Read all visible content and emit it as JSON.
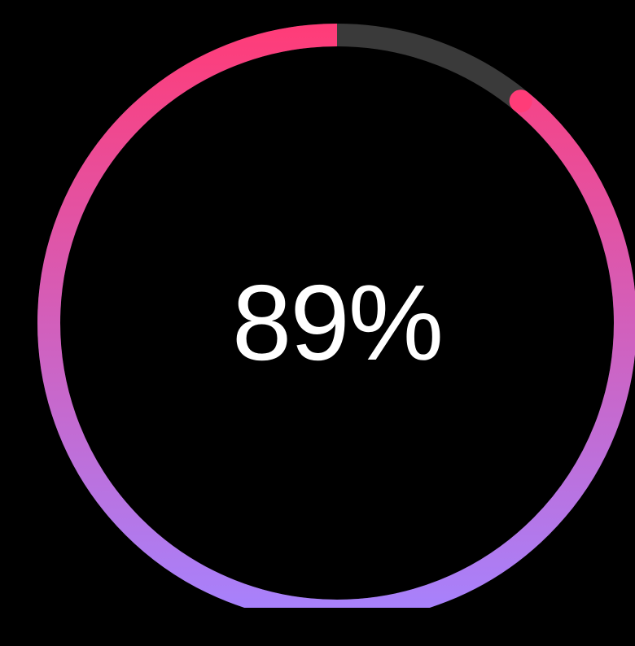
{
  "progress": {
    "value": 0.89,
    "label": "89%"
  },
  "colors": {
    "background": "#000000",
    "track": "#3a3a3a",
    "gradient_start": "#a583ff",
    "gradient_end": "#ff3c78",
    "text": "#ffffff"
  }
}
